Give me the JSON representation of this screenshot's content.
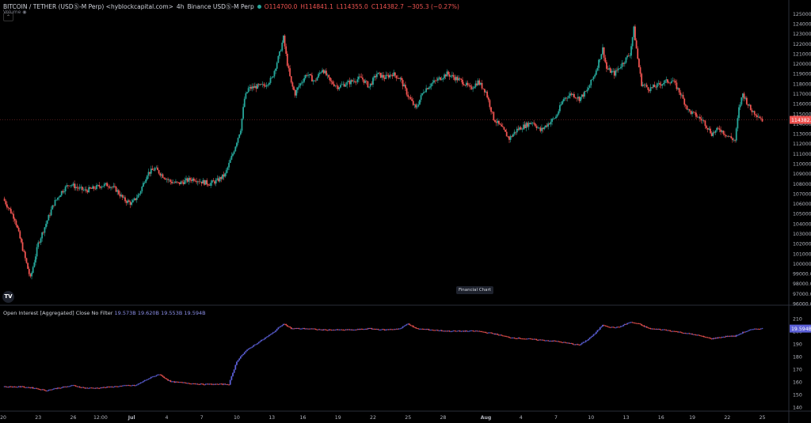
{
  "header": {
    "symbol": "BITCOIN / TETHER (USDⓈ-M Perp) <hyblockcapital.com>",
    "interval": "4h",
    "exchange": "Binance USDⓈ-M Perp",
    "o": "O114700.0",
    "h": "H114841.1",
    "l": "L114355.0",
    "c": "C114382.7",
    "chg": "−305.3 (−0.27%)",
    "volume_label": "Volume"
  },
  "oi_legend": {
    "title": "Open Interest [Aggregated] Close No Filter",
    "values": "19.573B  19.620B  19.553B  19.594B"
  },
  "price_label": "114382.7",
  "oi_price_label": "19.594B",
  "watermark": "Financial Chart",
  "logo": "TV",
  "colors": {
    "up": "#26a69a",
    "down": "#ef5350",
    "oi": "#5b5fd6",
    "bg": "#000000"
  },
  "chart_data": [
    {
      "type": "candlestick",
      "y_ticks": [
        "125000.0",
        "124000.0",
        "123000.0",
        "122000.0",
        "121000.0",
        "120000.0",
        "119000.0",
        "118000.0",
        "117000.0",
        "116000.0",
        "115000.0",
        "114000.0",
        "113000.0",
        "112000.0",
        "111000.0",
        "110000.0",
        "109000.0",
        "108000.0",
        "107000.0",
        "106000.0",
        "105000.0",
        "104000.0",
        "103000.0",
        "102000.0",
        "101000.0",
        "100000.0",
        "99000.0",
        "98000.0",
        "97000.0",
        "96000.0"
      ],
      "ylim": [
        96000,
        125900
      ],
      "current_price": 114382.7,
      "series": [
        {
          "x": 0,
          "y": 106500
        },
        {
          "x": 3,
          "y": 104500
        },
        {
          "x": 5,
          "y": 101500
        },
        {
          "x": 7,
          "y": 98500
        },
        {
          "x": 9,
          "y": 102000
        },
        {
          "x": 11,
          "y": 104000
        },
        {
          "x": 13,
          "y": 106000
        },
        {
          "x": 15,
          "y": 107200
        },
        {
          "x": 17,
          "y": 108000
        },
        {
          "x": 19,
          "y": 107600
        },
        {
          "x": 21,
          "y": 107300
        },
        {
          "x": 23,
          "y": 107500
        },
        {
          "x": 25,
          "y": 107800
        },
        {
          "x": 27,
          "y": 107900
        },
        {
          "x": 29,
          "y": 107400
        },
        {
          "x": 31,
          "y": 106400
        },
        {
          "x": 33,
          "y": 106000
        },
        {
          "x": 35,
          "y": 107000
        },
        {
          "x": 37,
          "y": 109000
        },
        {
          "x": 39,
          "y": 109500
        },
        {
          "x": 41,
          "y": 108800
        },
        {
          "x": 43,
          "y": 108200
        },
        {
          "x": 45,
          "y": 108000
        },
        {
          "x": 47,
          "y": 108300
        },
        {
          "x": 49,
          "y": 108500
        },
        {
          "x": 51,
          "y": 108200
        },
        {
          "x": 53,
          "y": 108000
        },
        {
          "x": 55,
          "y": 108300
        },
        {
          "x": 57,
          "y": 108900
        },
        {
          "x": 59,
          "y": 111000
        },
        {
          "x": 61,
          "y": 113500
        },
        {
          "x": 62,
          "y": 116500
        },
        {
          "x": 63,
          "y": 117500
        },
        {
          "x": 65,
          "y": 117700
        },
        {
          "x": 67,
          "y": 117800
        },
        {
          "x": 69,
          "y": 118500
        },
        {
          "x": 71,
          "y": 121000
        },
        {
          "x": 72,
          "y": 122600
        },
        {
          "x": 73,
          "y": 120000
        },
        {
          "x": 74,
          "y": 118000
        },
        {
          "x": 75,
          "y": 117000
        },
        {
          "x": 76,
          "y": 117800
        },
        {
          "x": 78,
          "y": 119000
        },
        {
          "x": 80,
          "y": 118200
        },
        {
          "x": 82,
          "y": 119500
        },
        {
          "x": 84,
          "y": 118200
        },
        {
          "x": 86,
          "y": 117700
        },
        {
          "x": 88,
          "y": 118000
        },
        {
          "x": 90,
          "y": 118300
        },
        {
          "x": 92,
          "y": 118600
        },
        {
          "x": 94,
          "y": 117700
        },
        {
          "x": 96,
          "y": 119000
        },
        {
          "x": 98,
          "y": 118600
        },
        {
          "x": 100,
          "y": 119000
        },
        {
          "x": 102,
          "y": 118500
        },
        {
          "x": 104,
          "y": 116800
        },
        {
          "x": 106,
          "y": 115500
        },
        {
          "x": 108,
          "y": 117300
        },
        {
          "x": 110,
          "y": 118000
        },
        {
          "x": 112,
          "y": 118500
        },
        {
          "x": 114,
          "y": 119000
        },
        {
          "x": 116,
          "y": 118600
        },
        {
          "x": 118,
          "y": 118200
        },
        {
          "x": 120,
          "y": 117500
        },
        {
          "x": 122,
          "y": 118200
        },
        {
          "x": 124,
          "y": 117200
        },
        {
          "x": 126,
          "y": 114500
        },
        {
          "x": 128,
          "y": 113600
        },
        {
          "x": 130,
          "y": 112500
        },
        {
          "x": 132,
          "y": 113400
        },
        {
          "x": 134,
          "y": 113800
        },
        {
          "x": 136,
          "y": 114200
        },
        {
          "x": 138,
          "y": 113300
        },
        {
          "x": 140,
          "y": 114000
        },
        {
          "x": 142,
          "y": 114700
        },
        {
          "x": 144,
          "y": 116500
        },
        {
          "x": 146,
          "y": 117000
        },
        {
          "x": 148,
          "y": 116500
        },
        {
          "x": 150,
          "y": 117300
        },
        {
          "x": 152,
          "y": 119000
        },
        {
          "x": 154,
          "y": 121500
        },
        {
          "x": 155,
          "y": 119500
        },
        {
          "x": 157,
          "y": 119000
        },
        {
          "x": 159,
          "y": 120000
        },
        {
          "x": 161,
          "y": 121000
        },
        {
          "x": 162,
          "y": 123500
        },
        {
          "x": 163,
          "y": 120500
        },
        {
          "x": 164,
          "y": 118000
        },
        {
          "x": 166,
          "y": 117500
        },
        {
          "x": 168,
          "y": 117800
        },
        {
          "x": 170,
          "y": 118200
        },
        {
          "x": 172,
          "y": 118300
        },
        {
          "x": 174,
          "y": 117000
        },
        {
          "x": 176,
          "y": 115300
        },
        {
          "x": 178,
          "y": 114800
        },
        {
          "x": 180,
          "y": 114200
        },
        {
          "x": 182,
          "y": 113000
        },
        {
          "x": 184,
          "y": 113500
        },
        {
          "x": 186,
          "y": 112800
        },
        {
          "x": 188,
          "y": 112300
        },
        {
          "x": 189,
          "y": 115500
        },
        {
          "x": 190,
          "y": 117000
        },
        {
          "x": 192,
          "y": 115400
        },
        {
          "x": 194,
          "y": 114800
        },
        {
          "x": 195,
          "y": 114382.7
        }
      ]
    },
    {
      "type": "line",
      "name": "Open Interest [Aggregated] Close No Filter",
      "y_ticks": [
        "210",
        "200",
        "190",
        "180",
        "170",
        "160",
        "150",
        "140"
      ],
      "ylim": [
        138,
        213
      ],
      "series": [
        {
          "x": 0,
          "y": 156
        },
        {
          "x": 5,
          "y": 156
        },
        {
          "x": 8,
          "y": 155
        },
        {
          "x": 11,
          "y": 153
        },
        {
          "x": 14,
          "y": 155
        },
        {
          "x": 18,
          "y": 157
        },
        {
          "x": 21,
          "y": 155
        },
        {
          "x": 24,
          "y": 155
        },
        {
          "x": 28,
          "y": 156
        },
        {
          "x": 32,
          "y": 157
        },
        {
          "x": 34,
          "y": 157
        },
        {
          "x": 37,
          "y": 162
        },
        {
          "x": 40,
          "y": 166
        },
        {
          "x": 43,
          "y": 160
        },
        {
          "x": 47,
          "y": 159
        },
        {
          "x": 51,
          "y": 158
        },
        {
          "x": 55,
          "y": 158
        },
        {
          "x": 58,
          "y": 158
        },
        {
          "x": 60,
          "y": 176
        },
        {
          "x": 61,
          "y": 180
        },
        {
          "x": 63,
          "y": 186
        },
        {
          "x": 66,
          "y": 192
        },
        {
          "x": 69,
          "y": 198
        },
        {
          "x": 72,
          "y": 206
        },
        {
          "x": 74,
          "y": 202
        },
        {
          "x": 78,
          "y": 202
        },
        {
          "x": 82,
          "y": 201
        },
        {
          "x": 86,
          "y": 201
        },
        {
          "x": 90,
          "y": 201
        },
        {
          "x": 94,
          "y": 202
        },
        {
          "x": 98,
          "y": 201
        },
        {
          "x": 102,
          "y": 202
        },
        {
          "x": 104,
          "y": 206
        },
        {
          "x": 106,
          "y": 202
        },
        {
          "x": 110,
          "y": 201
        },
        {
          "x": 114,
          "y": 200
        },
        {
          "x": 118,
          "y": 200
        },
        {
          "x": 122,
          "y": 200
        },
        {
          "x": 126,
          "y": 198
        },
        {
          "x": 130,
          "y": 195
        },
        {
          "x": 134,
          "y": 194
        },
        {
          "x": 138,
          "y": 193
        },
        {
          "x": 142,
          "y": 192
        },
        {
          "x": 146,
          "y": 190
        },
        {
          "x": 148,
          "y": 189
        },
        {
          "x": 150,
          "y": 193
        },
        {
          "x": 152,
          "y": 198
        },
        {
          "x": 154,
          "y": 205
        },
        {
          "x": 156,
          "y": 203
        },
        {
          "x": 158,
          "y": 203
        },
        {
          "x": 161,
          "y": 207
        },
        {
          "x": 163,
          "y": 206
        },
        {
          "x": 166,
          "y": 202
        },
        {
          "x": 170,
          "y": 201
        },
        {
          "x": 174,
          "y": 199
        },
        {
          "x": 178,
          "y": 197
        },
        {
          "x": 182,
          "y": 194
        },
        {
          "x": 186,
          "y": 196
        },
        {
          "x": 188,
          "y": 196
        },
        {
          "x": 190,
          "y": 199
        },
        {
          "x": 192,
          "y": 201
        },
        {
          "x": 194,
          "y": 202
        },
        {
          "x": 195,
          "y": 202
        }
      ]
    }
  ],
  "x_ticks": [
    {
      "label": "20",
      "x": 0
    },
    {
      "label": "23",
      "x": 9
    },
    {
      "label": "26",
      "x": 18
    },
    {
      "label": "12:00",
      "x": 25
    },
    {
      "label": "Jul",
      "x": 33
    },
    {
      "label": "4",
      "x": 42
    },
    {
      "label": "7",
      "x": 51
    },
    {
      "label": "10",
      "x": 60
    },
    {
      "label": "13",
      "x": 69
    },
    {
      "label": "16",
      "x": 77
    },
    {
      "label": "19",
      "x": 86
    },
    {
      "label": "22",
      "x": 95
    },
    {
      "label": "25",
      "x": 104
    },
    {
      "label": "28",
      "x": 113
    },
    {
      "label": "Aug",
      "x": 124
    },
    {
      "label": "4",
      "x": 133
    },
    {
      "label": "7",
      "x": 142
    },
    {
      "label": "10",
      "x": 151
    },
    {
      "label": "13",
      "x": 160
    },
    {
      "label": "16",
      "x": 169
    },
    {
      "label": "19",
      "x": 177
    },
    {
      "label": "22",
      "x": 186
    },
    {
      "label": "25",
      "x": 195
    }
  ],
  "x_max": 201
}
